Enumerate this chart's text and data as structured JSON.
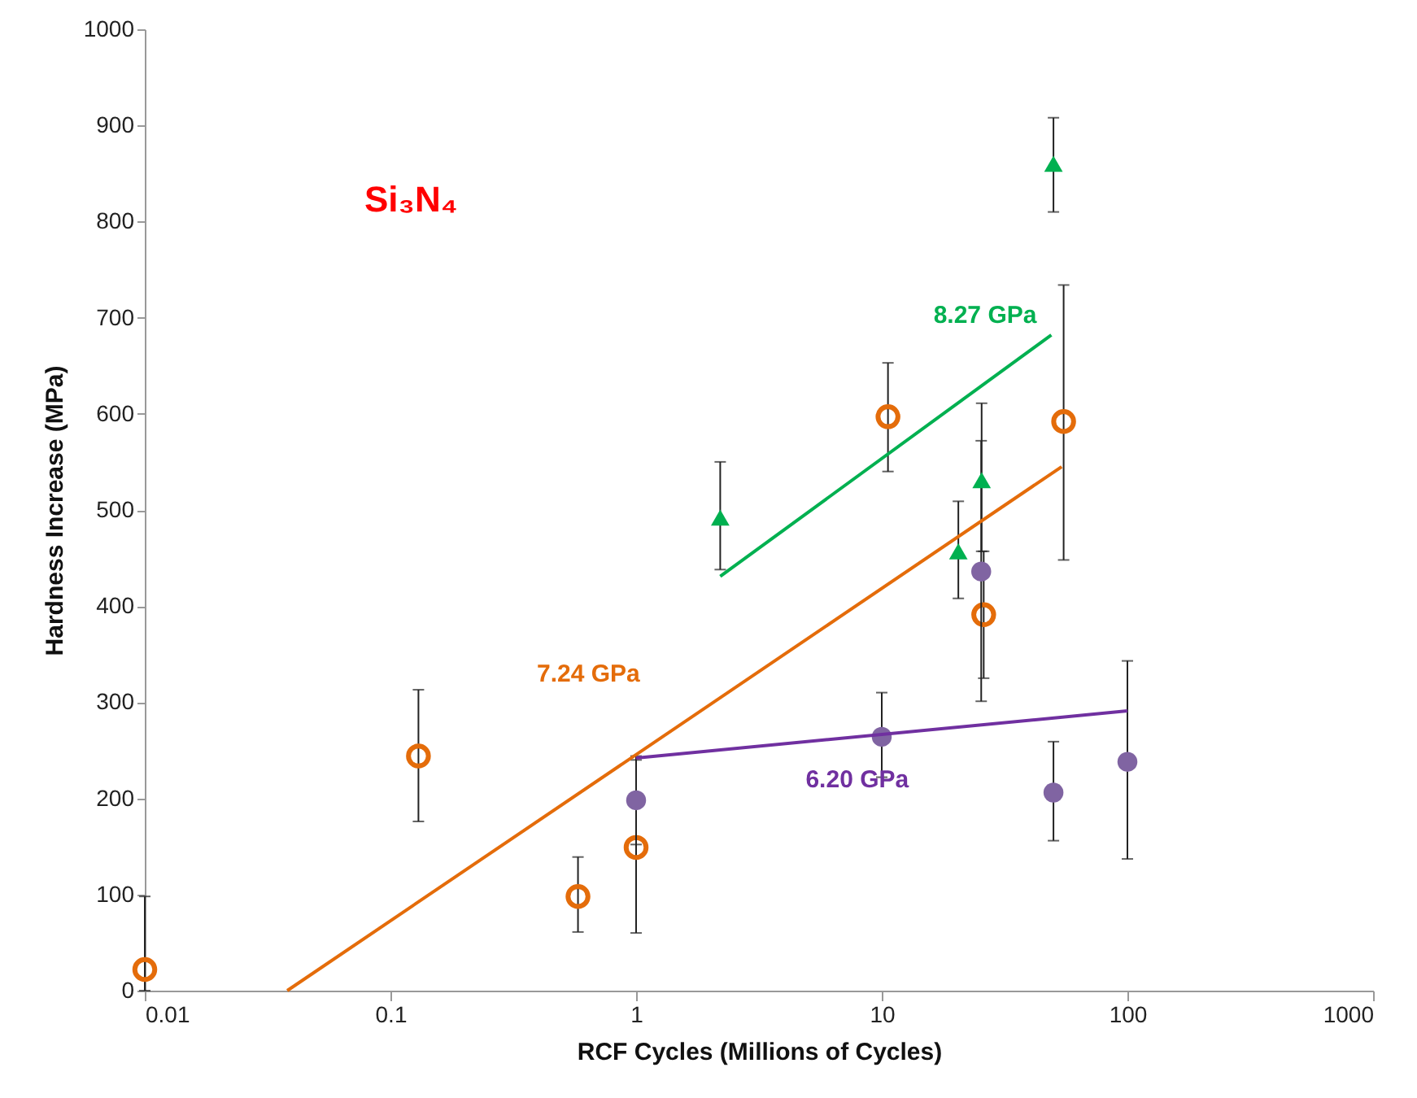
{
  "chart_data": {
    "type": "scatter",
    "xlabel": "RCF Cycles (Millions of Cycles)",
    "ylabel": "Hardness Increase (MPa)",
    "log": "x",
    "xlim": [
      0.01,
      1000
    ],
    "xticks": [
      0.01,
      0.1,
      1,
      10,
      100,
      1000
    ],
    "ylim": [
      0,
      1000
    ],
    "yticks": [
      0,
      100,
      200,
      300,
      400,
      500,
      600,
      700,
      800,
      900,
      1000
    ],
    "grid": false,
    "annotations": [
      "Si₃N₄"
    ],
    "series": [
      {
        "marker": "circle",
        "color": "#e46c0a",
        "x": [
          0.01,
          0.13,
          0.58,
          1,
          10.6,
          26,
          55
        ],
        "values": [
          22,
          244,
          98,
          149,
          597,
          391,
          592
        ],
        "errors": [
          [
            0,
            98
          ],
          [
            176,
            313
          ],
          [
            61,
            139
          ],
          [
            60,
            240
          ],
          [
            540,
            653
          ],
          [
            325,
            457
          ],
          [
            448,
            734
          ]
        ]
      },
      {
        "marker": "circle",
        "color": "#8064a2",
        "x": [
          1,
          10,
          25.4,
          50,
          100
        ],
        "values": [
          198,
          264,
          436,
          206,
          238
        ],
        "errors": [
          [
            152,
            244
          ],
          [
            222,
            310
          ],
          [
            301,
            572
          ],
          [
            156,
            259
          ],
          [
            137,
            343
          ]
        ]
      },
      {
        "marker": "triangle",
        "color": "#00b050",
        "x": [
          2.2,
          20.5,
          25.5,
          50
        ],
        "values": [
          492,
          457,
          531,
          860
        ],
        "errors": [
          [
            438,
            550
          ],
          [
            408,
            509
          ],
          [
            457,
            611
          ],
          [
            810,
            908
          ]
        ]
      },
      {
        "type": "line",
        "name": "7.24 GPa",
        "color": "#e46c0a",
        "x": [
          0.038,
          54
        ],
        "values": [
          0,
          545
        ]
      },
      {
        "type": "line",
        "name": "6.20 GPa",
        "color": "#7030a0",
        "x": [
          1,
          100
        ],
        "values": [
          242,
          291
        ]
      },
      {
        "type": "line",
        "name": "8.27 GPa",
        "color": "#00b050",
        "x": [
          2.2,
          49
        ],
        "values": [
          431,
          682
        ]
      }
    ]
  }
}
